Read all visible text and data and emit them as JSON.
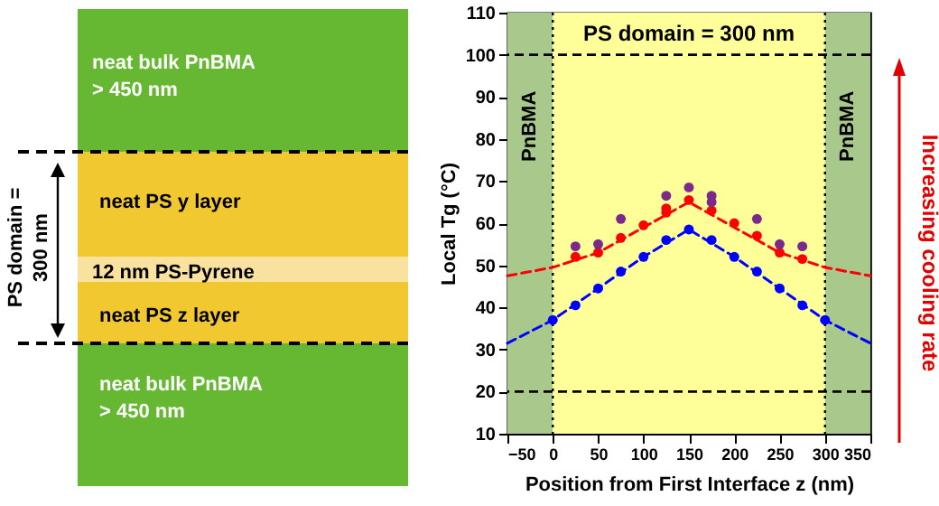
{
  "chart_data": [
    {
      "type": "other",
      "annotations": [
        "neat bulk PnBMA\n> 450 nm",
        "neat PS y layer",
        "12 nm PS-Pyrene",
        "neat PS z layer",
        "neat bulk PnBMA\n> 450 nm",
        "PS domain =\n300 nm"
      ]
    },
    {
      "type": "scatter",
      "xlabel": "Position from First Interface z (nm)",
      "ylabel": "Local Tg (°C)",
      "xlim": [
        -50,
        350
      ],
      "xticks": [
        -50,
        0,
        50,
        100,
        150,
        200,
        250,
        300,
        350
      ],
      "ylim": [
        10,
        110
      ],
      "yticks": [
        10,
        20,
        30,
        40,
        50,
        60,
        70,
        80,
        90,
        100,
        110
      ],
      "grid": false,
      "marker": "circle",
      "series": [
        {
          "color": "#0000ff",
          "x": [
            0,
            25,
            50,
            75,
            100,
            125,
            150,
            175,
            200,
            225,
            250,
            275,
            300
          ],
          "values": [
            37,
            40.5,
            44.5,
            48.5,
            52,
            56,
            58.5,
            56,
            52,
            48.5,
            44.5,
            40.5,
            37
          ]
        },
        {
          "color": "#ff0000",
          "x": [
            25,
            50,
            75,
            100,
            125,
            125,
            150,
            175,
            200,
            225,
            250,
            275
          ],
          "values": [
            52,
            53,
            56.5,
            59.5,
            62.5,
            63.5,
            65.5,
            63,
            60,
            57,
            53,
            51.5
          ]
        },
        {
          "color": "#7b2a8c",
          "x": [
            25,
            50,
            75,
            125,
            150,
            175,
            175,
            225,
            250,
            275
          ],
          "values": [
            54.5,
            55,
            61,
            66.5,
            68.5,
            66.5,
            65,
            61,
            55,
            54.5
          ]
        },
        {
          "type": "line",
          "color": "#0000ff",
          "line_style": "dashed",
          "marker": "none",
          "x": [
            -50,
            0,
            50,
            100,
            150,
            200,
            250,
            300,
            350
          ],
          "values": [
            31.5,
            37,
            44.5,
            52,
            58.5,
            52,
            44.5,
            37,
            31.5
          ]
        },
        {
          "type": "line",
          "color": "#ff0000",
          "line_style": "dashed",
          "marker": "none",
          "x": [
            -50,
            0,
            50,
            100,
            150,
            200,
            250,
            300,
            350
          ],
          "values": [
            47.5,
            49.5,
            53,
            59,
            65,
            59,
            53,
            49.5,
            47.5
          ]
        }
      ],
      "bands": [
        {
          "axis": "x",
          "from": -50,
          "to": 0,
          "label": "PnBMA",
          "color": "#a9c98c"
        },
        {
          "axis": "x",
          "from": 0,
          "to": 300,
          "label": "PS domain = 300 nm",
          "color": "#ffff99"
        },
        {
          "axis": "x",
          "from": 300,
          "to": 350,
          "label": "PnBMA",
          "color": "#a9c98c"
        }
      ],
      "ref_lines": [
        {
          "axis": "y",
          "value": 100,
          "line_style": "dashed",
          "color": "#000000"
        },
        {
          "axis": "y",
          "value": 20,
          "line_style": "dashed",
          "color": "#000000"
        },
        {
          "axis": "x",
          "value": 0,
          "line_style": "dotted",
          "color": "#000000"
        },
        {
          "axis": "x",
          "value": 300,
          "line_style": "dotted",
          "color": "#000000"
        }
      ],
      "annotations": [
        "Increasing cooling rate"
      ]
    }
  ]
}
